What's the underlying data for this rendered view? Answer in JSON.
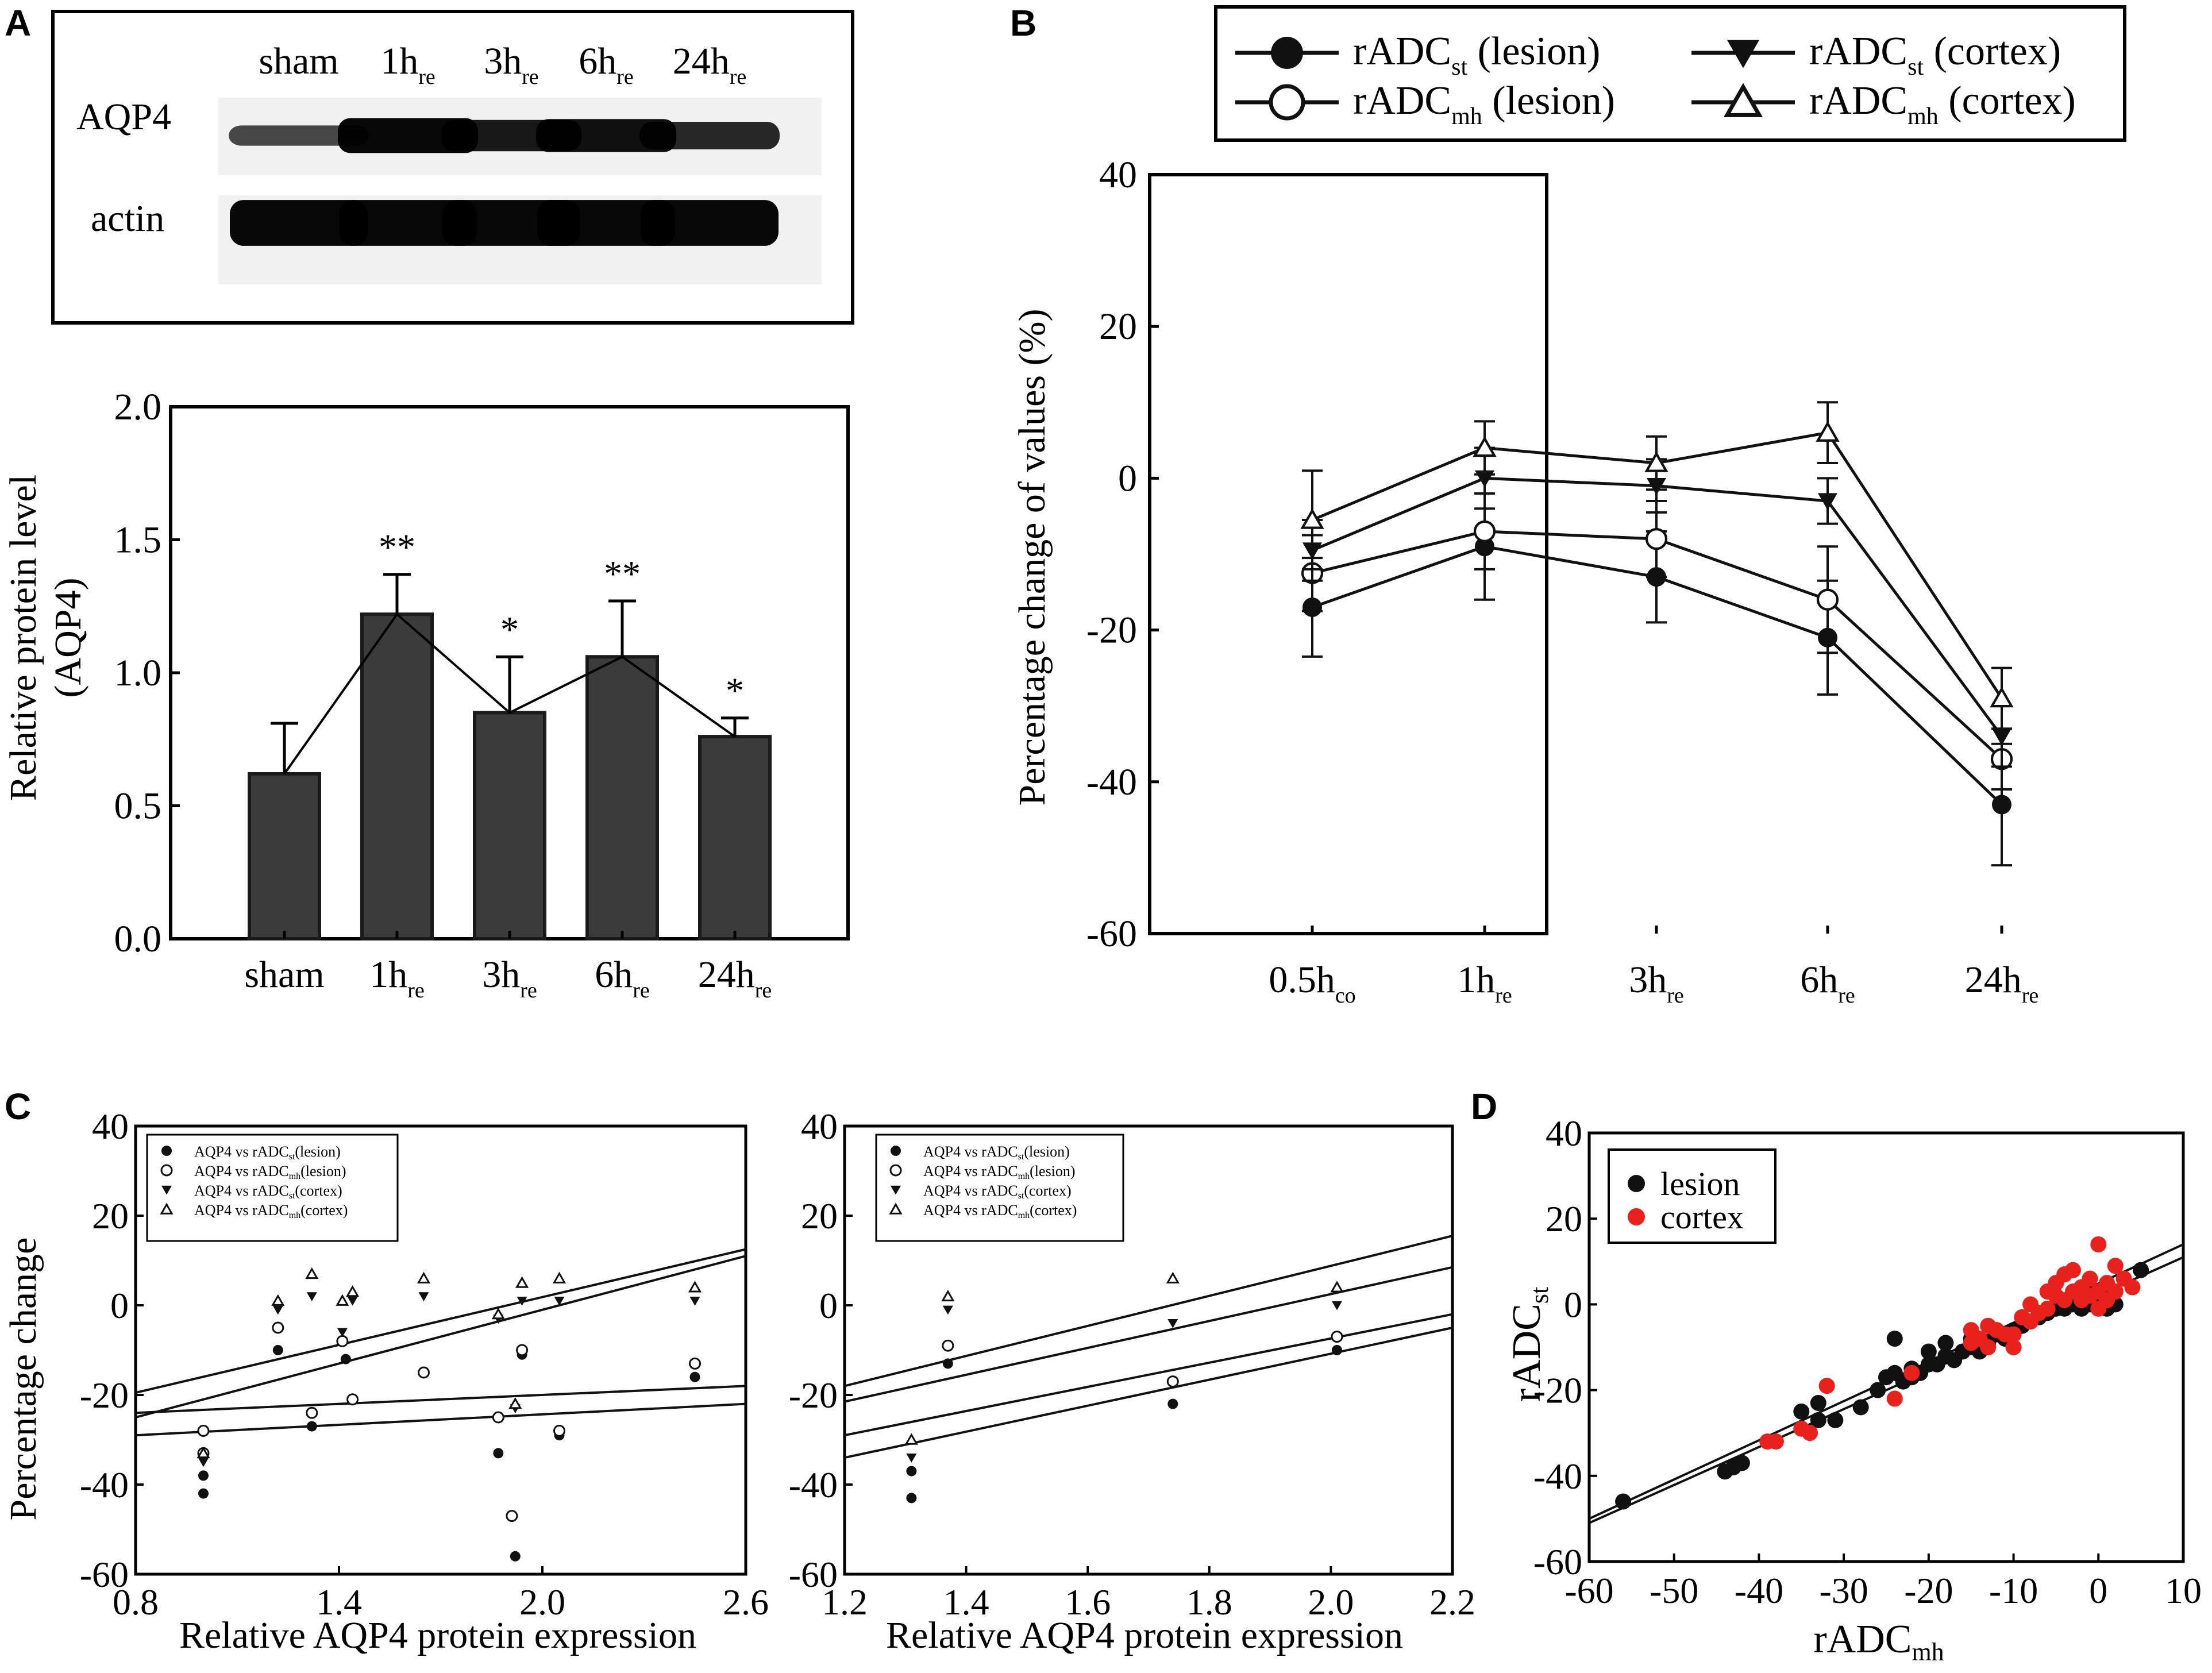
{
  "panel_labels": {
    "a": "A",
    "b": "B",
    "c": "C",
    "d": "D"
  },
  "blot": {
    "lanes": [
      "sham",
      "1h",
      "3h",
      "6h",
      "24h"
    ],
    "lane_subs": [
      "",
      "re",
      "re",
      "re",
      "re"
    ],
    "rows": [
      "AQP4",
      "actin"
    ],
    "band_intensity": {
      "AQP4": [
        0.55,
        0.95,
        0.85,
        0.9,
        0.75
      ],
      "actin": [
        0.95,
        0.95,
        0.95,
        0.95,
        0.95
      ]
    }
  },
  "chart_data": [
    {
      "id": "A-bar",
      "type": "bar",
      "categories": [
        "sham",
        "1h",
        "3h",
        "6h",
        "24h"
      ],
      "category_subs": [
        "",
        "re",
        "re",
        "re",
        "re"
      ],
      "values": [
        0.62,
        1.22,
        0.85,
        1.06,
        0.76
      ],
      "errors": [
        0.19,
        0.15,
        0.21,
        0.21,
        0.07
      ],
      "significance": [
        "",
        "**",
        "*",
        "**",
        "*"
      ],
      "ylabel_line1": "Relative protein level",
      "ylabel_line2": "(AQP4)",
      "ylim": [
        0,
        2.0
      ],
      "yticks": [
        "0.0",
        "0.5",
        "1.0",
        "1.5",
        "2.0"
      ],
      "overlay_line": true
    },
    {
      "id": "B-line",
      "type": "line",
      "categories": [
        "0.5h",
        "1h",
        "3h",
        "6h",
        "24h"
      ],
      "category_subs": [
        "co",
        "re",
        "re",
        "re",
        "re"
      ],
      "ylabel": "Percentage change of  values (%)",
      "ylim": [
        -60,
        40
      ],
      "yticks": [
        "-60",
        "-40",
        "-20",
        "0",
        "20",
        "40"
      ],
      "legend": [
        {
          "main": "rADC",
          "sub": "st",
          "suffix": " (lesion)",
          "marker": "filled-circle"
        },
        {
          "main": "rADC",
          "sub": "mh",
          "suffix": " (lesion)",
          "marker": "open-circle"
        },
        {
          "main": "rADC",
          "sub": "st",
          "suffix": " (cortex)",
          "marker": "filled-triangle-down"
        },
        {
          "main": "rADC",
          "sub": "mh",
          "suffix": " (cortex)",
          "marker": "open-triangle-up"
        }
      ],
      "series": [
        {
          "name": "rADCst (lesion)",
          "marker": "filled-circle",
          "values": [
            -17,
            -9,
            -13,
            -21,
            -43
          ],
          "errors": [
            6.5,
            7,
            6,
            7.5,
            8
          ]
        },
        {
          "name": "rADCmh (lesion)",
          "marker": "open-circle",
          "values": [
            -12.5,
            -7,
            -8,
            -16,
            -37
          ],
          "errors": [
            5,
            5,
            5,
            7,
            4
          ]
        },
        {
          "name": "rADCst (cortex)",
          "marker": "filled-triangle-down",
          "values": [
            -9.5,
            0,
            -1,
            -3,
            -34
          ],
          "errors": [
            4,
            4,
            3.5,
            3,
            4
          ]
        },
        {
          "name": "rADCmh (cortex)",
          "marker": "open-triangle-up",
          "values": [
            -5.5,
            4,
            2,
            6,
            -29
          ],
          "errors": [
            6.5,
            3.5,
            3.5,
            4,
            4
          ]
        }
      ]
    },
    {
      "id": "C-left",
      "type": "scatter",
      "ylabel": "Percentage change",
      "xlabel": "Relative AQP4 protein expression",
      "xlim": [
        0.8,
        2.6
      ],
      "ylim": [
        -60,
        40
      ],
      "xticks": [
        "0.8",
        "1.4",
        "2.0",
        "2.6"
      ],
      "yticks": [
        "-60",
        "-40",
        "-20",
        "0",
        "20",
        "40"
      ],
      "legend": [
        {
          "text": "AQP4 vs rADC",
          "sub": "st",
          "tail": "(lesion)",
          "marker": "filled-circle"
        },
        {
          "text": "AQP4 vs rADC",
          "sub": "mh",
          "tail": "(lesion)",
          "marker": "open-circle"
        },
        {
          "text": "AQP4 vs rADC",
          "sub": "st",
          "tail": "(cortex)",
          "marker": "filled-triangle-down"
        },
        {
          "text": "AQP4 vs rADC",
          "sub": "mh",
          "tail": "(cortex)",
          "marker": "open-triangle-up"
        }
      ],
      "series": [
        {
          "name": "AQP4 vs rADCst (lesion)",
          "marker": "filled-circle",
          "points": [
            [
              1.0,
              -38
            ],
            [
              1.0,
              -42
            ],
            [
              1.22,
              -10
            ],
            [
              1.32,
              -27
            ],
            [
              1.42,
              -12
            ],
            [
              1.87,
              -33
            ],
            [
              1.92,
              -56
            ],
            [
              1.94,
              -11
            ],
            [
              2.05,
              -29
            ],
            [
              2.45,
              -16
            ]
          ]
        },
        {
          "name": "AQP4 vs rADCmh (lesion)",
          "marker": "open-circle",
          "points": [
            [
              1.0,
              -28
            ],
            [
              1.0,
              -33
            ],
            [
              1.22,
              -5
            ],
            [
              1.32,
              -24
            ],
            [
              1.41,
              -8
            ],
            [
              1.44,
              -21
            ],
            [
              1.65,
              -15
            ],
            [
              1.87,
              -25
            ],
            [
              1.91,
              -47
            ],
            [
              1.94,
              -10
            ],
            [
              2.05,
              -28
            ],
            [
              2.45,
              -13
            ]
          ]
        },
        {
          "name": "AQP4 vs rADCst (cortex)",
          "marker": "filled-triangle-down",
          "points": [
            [
              1.0,
              -35
            ],
            [
              1.22,
              -1
            ],
            [
              1.32,
              2
            ],
            [
              1.41,
              -6
            ],
            [
              1.44,
              1
            ],
            [
              1.65,
              2
            ],
            [
              1.87,
              -3
            ],
            [
              1.92,
              -23
            ],
            [
              1.94,
              1
            ],
            [
              2.05,
              1
            ],
            [
              2.45,
              1
            ]
          ]
        },
        {
          "name": "AQP4 vs rADCmh (cortex)",
          "marker": "open-triangle-up",
          "points": [
            [
              1.0,
              -33
            ],
            [
              1.22,
              1
            ],
            [
              1.32,
              7
            ],
            [
              1.41,
              1
            ],
            [
              1.44,
              3
            ],
            [
              1.65,
              6
            ],
            [
              1.87,
              -2
            ],
            [
              1.92,
              -22
            ],
            [
              1.94,
              5
            ],
            [
              2.05,
              6
            ],
            [
              2.45,
              4
            ]
          ]
        }
      ],
      "fit_lines": [
        {
          "from": [
            0.8,
            -19.5
          ],
          "to": [
            2.6,
            12.5
          ]
        },
        {
          "from": [
            0.8,
            -25
          ],
          "to": [
            2.6,
            11
          ]
        },
        {
          "from": [
            0.8,
            -24
          ],
          "to": [
            2.6,
            -18
          ]
        },
        {
          "from": [
            0.8,
            -29
          ],
          "to": [
            2.6,
            -22
          ]
        }
      ]
    },
    {
      "id": "C-right",
      "type": "scatter",
      "xlabel": "Relative AQP4 protein expression",
      "xlim": [
        1.2,
        2.2
      ],
      "ylim": [
        -60,
        40
      ],
      "xticks": [
        "1.2",
        "1.4",
        "1.6",
        "1.8",
        "2.0",
        "2.2"
      ],
      "yticks": [
        "-60",
        "-40",
        "-20",
        "0",
        "20",
        "40"
      ],
      "legend": [
        {
          "text": "AQP4 vs rADC",
          "sub": "st",
          "tail": "(lesion)",
          "marker": "filled-circle"
        },
        {
          "text": "AQP4 vs rADC",
          "sub": "mh",
          "tail": "(lesion)",
          "marker": "open-circle"
        },
        {
          "text": "AQP4 vs rADC",
          "sub": "st",
          "tail": "(cortex)",
          "marker": "filled-triangle-down"
        },
        {
          "text": "AQP4 vs rADC",
          "sub": "mh",
          "tail": "(cortex)",
          "marker": "open-triangle-up"
        }
      ],
      "series": [
        {
          "name": "AQP4 vs rADCst (lesion)",
          "marker": "filled-circle",
          "points": [
            [
              1.31,
              -37
            ],
            [
              1.31,
              -43
            ],
            [
              1.37,
              -13
            ],
            [
              1.74,
              -22
            ],
            [
              2.01,
              -10
            ]
          ]
        },
        {
          "name": "AQP4 vs rADCmh (lesion)",
          "marker": "open-circle",
          "points": [
            [
              1.37,
              -9
            ],
            [
              1.74,
              -17
            ],
            [
              2.01,
              -7
            ]
          ]
        },
        {
          "name": "AQP4 vs rADCst (cortex)",
          "marker": "filled-triangle-down",
          "points": [
            [
              1.31,
              -34
            ],
            [
              1.37,
              -1
            ],
            [
              1.74,
              -4
            ],
            [
              2.01,
              0
            ]
          ]
        },
        {
          "name": "AQP4 vs rADCmh (cortex)",
          "marker": "open-triangle-up",
          "points": [
            [
              1.31,
              -30
            ],
            [
              1.37,
              2
            ],
            [
              1.74,
              6
            ],
            [
              2.01,
              4
            ]
          ]
        }
      ],
      "fit_lines": [
        {
          "from": [
            1.2,
            -18
          ],
          "to": [
            2.2,
            15.5
          ]
        },
        {
          "from": [
            1.2,
            -21.5
          ],
          "to": [
            2.2,
            8.5
          ]
        },
        {
          "from": [
            1.2,
            -29
          ],
          "to": [
            2.2,
            -2
          ]
        },
        {
          "from": [
            1.2,
            -34
          ],
          "to": [
            2.2,
            -5
          ]
        }
      ]
    },
    {
      "id": "D-scatter",
      "type": "scatter",
      "xlabel": "rADC",
      "xlabel_sub": "mh",
      "ylabel": "rADC",
      "ylabel_sub": "st",
      "xlim": [
        -60,
        10
      ],
      "ylim": [
        -60,
        40
      ],
      "xticks": [
        "-60",
        "-50",
        "-40",
        "-30",
        "-20",
        "-10",
        "0",
        "10"
      ],
      "yticks": [
        "-60",
        "-40",
        "-20",
        "0",
        "20",
        "40"
      ],
      "colors": {
        "lesion": "#111111",
        "cortex": "#e8211d"
      },
      "legend": [
        {
          "label": "lesion",
          "color": "#111111"
        },
        {
          "label": "cortex",
          "color": "#e8211d"
        }
      ],
      "series": [
        {
          "name": "lesion",
          "color": "#111111",
          "points": [
            [
              -56,
              -46
            ],
            [
              -44,
              -39
            ],
            [
              -43,
              -38
            ],
            [
              -42,
              -37
            ],
            [
              -35,
              -25
            ],
            [
              -33,
              -27
            ],
            [
              -33,
              -23
            ],
            [
              -31,
              -27
            ],
            [
              -28,
              -24
            ],
            [
              -26,
              -20
            ],
            [
              -25,
              -17
            ],
            [
              -24,
              -16
            ],
            [
              -24,
              -8
            ],
            [
              -23,
              -18
            ],
            [
              -22,
              -17
            ],
            [
              -21,
              -16
            ],
            [
              -20,
              -14
            ],
            [
              -19,
              -14
            ],
            [
              -18,
              -12
            ],
            [
              -17,
              -13
            ],
            [
              -16,
              -11
            ],
            [
              -15,
              -10
            ],
            [
              -14,
              -11
            ],
            [
              -13,
              -9
            ],
            [
              -12,
              -7
            ],
            [
              -11,
              -8
            ],
            [
              -10,
              -6
            ],
            [
              -9,
              -5
            ],
            [
              -8,
              -4
            ],
            [
              -7,
              -3
            ],
            [
              -6,
              -2
            ],
            [
              -5,
              -1
            ],
            [
              -4,
              -1
            ],
            [
              -3,
              0
            ],
            [
              -2,
              -1
            ],
            [
              -1,
              0
            ],
            [
              0,
              0
            ],
            [
              1,
              -1
            ],
            [
              2,
              0
            ],
            [
              5,
              8
            ],
            [
              -18,
              -9
            ],
            [
              -15,
              -8
            ],
            [
              -20,
              -11
            ],
            [
              -22,
              -15
            ]
          ]
        },
        {
          "name": "cortex",
          "color": "#e8211d",
          "points": [
            [
              -39,
              -32
            ],
            [
              -38,
              -32
            ],
            [
              -35,
              -29
            ],
            [
              -34,
              -30
            ],
            [
              -32,
              -19
            ],
            [
              -24,
              -22
            ],
            [
              -22,
              -16
            ],
            [
              -15,
              -6
            ],
            [
              -14,
              -8
            ],
            [
              -13,
              -5
            ],
            [
              -12,
              -6
            ],
            [
              -11,
              -7
            ],
            [
              -10,
              -10
            ],
            [
              -9,
              -3
            ],
            [
              -8,
              -4
            ],
            [
              -7,
              -2
            ],
            [
              -6,
              -1
            ],
            [
              -5,
              2
            ],
            [
              -4,
              1
            ],
            [
              -4,
              7
            ],
            [
              -3,
              3
            ],
            [
              -3,
              8
            ],
            [
              -2,
              4
            ],
            [
              -2,
              1
            ],
            [
              -1,
              6
            ],
            [
              -1,
              2
            ],
            [
              0,
              3
            ],
            [
              0,
              -1
            ],
            [
              0,
              14
            ],
            [
              1,
              5
            ],
            [
              1,
              1
            ],
            [
              2,
              3
            ],
            [
              2,
              9
            ],
            [
              3,
              6
            ],
            [
              4,
              4
            ],
            [
              -15,
              -9
            ],
            [
              -13,
              -10
            ],
            [
              -10,
              -7
            ],
            [
              -8,
              0
            ],
            [
              -6,
              3
            ],
            [
              -5,
              5
            ]
          ]
        }
      ],
      "fit_lines": [
        {
          "from": [
            -60,
            -51
          ],
          "to": [
            10,
            11
          ]
        },
        {
          "from": [
            -60,
            -50
          ],
          "to": [
            10,
            14
          ]
        }
      ]
    }
  ]
}
